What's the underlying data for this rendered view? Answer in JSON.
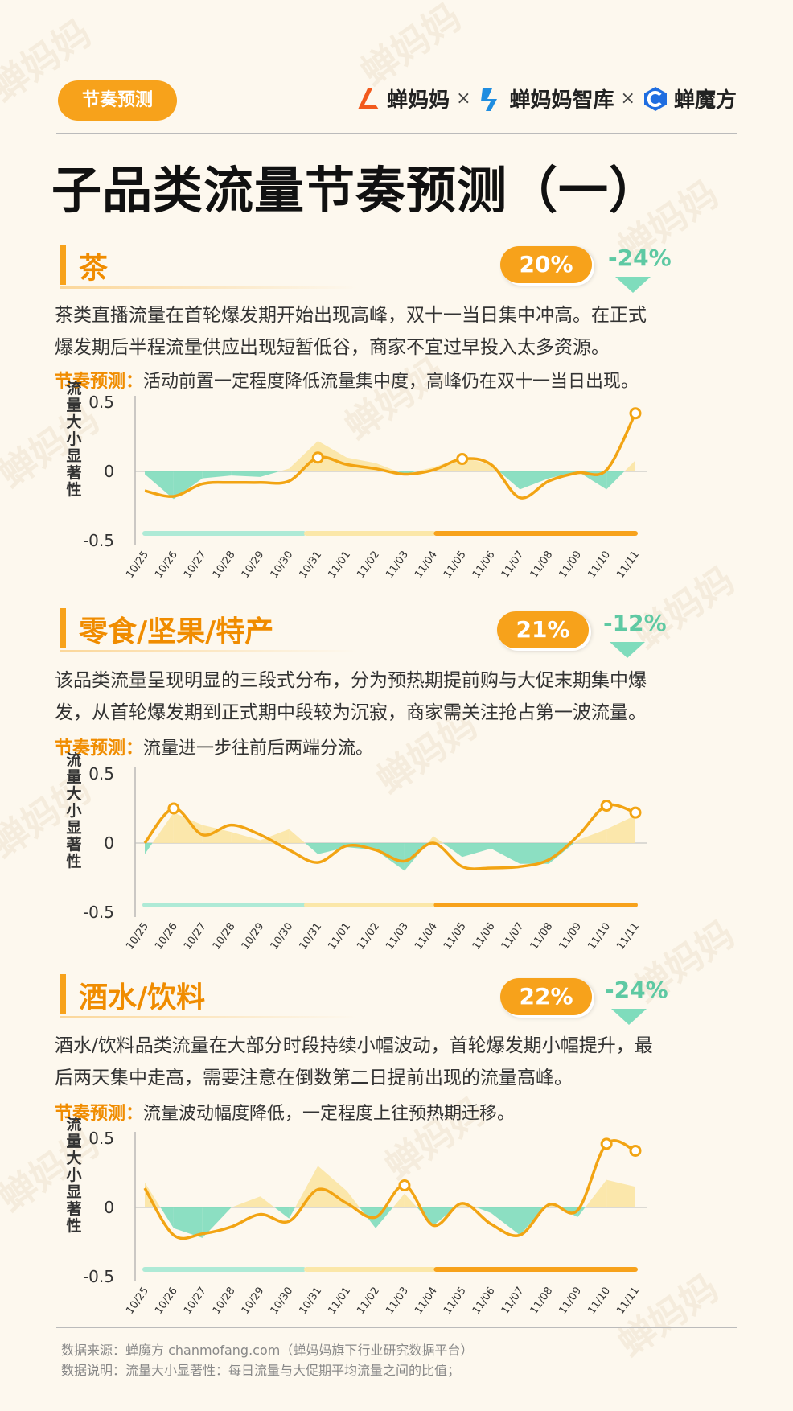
{
  "tag": "节奏预测",
  "brands": [
    {
      "name": "蝉妈妈",
      "icon": "chanmama-logo-icon",
      "color": "#f25a1d"
    },
    {
      "name": "蝉妈妈智库",
      "icon": "chanmama-zhiku-logo-icon",
      "color": "#1f8de0"
    },
    {
      "name": "蝉魔方",
      "icon": "chanmofang-logo-icon",
      "color": "#1f6de0"
    }
  ],
  "times_symbol": "×",
  "title": "子品类流量节奏预测（一）",
  "colors": {
    "accent": "#f7a21b",
    "positive_fill": "#fbe4a3",
    "negative_fill": "#7fdcbc",
    "line": "#f2a413",
    "phase1": "#aeead6",
    "phase2": "#fbe7a8",
    "phase3": "#f7a21b"
  },
  "sections": [
    {
      "title": "茶",
      "share": "20%",
      "change": "-24%",
      "description": [
        "茶类直播流量在首轮爆发期开始出现高峰，双十一当日集中冲高。在正式",
        "爆发期后半程流量供应出现短暂低谷，商家不宜过早投入太多资源。"
      ],
      "forecast_label": "节奏预测：",
      "forecast_text": "活动前置一定程度降低流量集中度，高峰仍在双十一当日出现。"
    },
    {
      "title": "零食/坚果/特产",
      "share": "21%",
      "change": "-12%",
      "description": [
        "该品类流量呈现明显的三段式分布，分为预热期提前购与大促末期集中爆",
        "发，从首轮爆发期到正式期中段较为沉寂，商家需关注抢占第一波流量。"
      ],
      "forecast_label": "节奏预测：",
      "forecast_text": "流量进一步往前后两端分流。"
    },
    {
      "title": "酒水/饮料",
      "share": "22%",
      "change": "-24%",
      "description": [
        "酒水/饮料品类流量在大部分时段持续小幅波动，首轮爆发期小幅提升，最",
        "后两天集中走高，需要注意在倒数第二日提前出现的流量高峰。"
      ],
      "forecast_label": "节奏预测：",
      "forecast_text": "流量波动幅度降低，一定程度上往预热期迁移。"
    }
  ],
  "chart_data": [
    {
      "type": "area",
      "ylabel": "流量大小显著性",
      "ylim": [
        -0.5,
        0.5
      ],
      "yticks": [
        "0.5",
        "0",
        "-0.5"
      ],
      "categories": [
        "10/25",
        "10/26",
        "10/27",
        "10/28",
        "10/29",
        "10/30",
        "10/31",
        "11/01",
        "11/02",
        "11/03",
        "11/04",
        "11/05",
        "11/06",
        "11/07",
        "11/08",
        "11/09",
        "11/10",
        "11/11"
      ],
      "series": [
        {
          "values": [
            -0.02,
            -0.2,
            -0.05,
            -0.03,
            -0.04,
            0.02,
            0.22,
            0.1,
            0.06,
            -0.02,
            0.03,
            0.1,
            0.05,
            -0.13,
            -0.05,
            0.0,
            -0.13,
            0.08
          ]
        },
        {
          "values": [
            -0.14,
            -0.18,
            -0.09,
            -0.08,
            -0.08,
            -0.07,
            0.1,
            0.05,
            0.02,
            -0.02,
            0.01,
            0.09,
            0.05,
            -0.19,
            -0.07,
            -0.01,
            0.01,
            0.42
          ],
          "markers": [
            6,
            11,
            17
          ]
        }
      ]
    },
    {
      "type": "area",
      "ylabel": "流量大小显著性",
      "ylim": [
        -0.5,
        0.5
      ],
      "yticks": [
        "0.5",
        "0",
        "-0.5"
      ],
      "categories": [
        "10/25",
        "10/26",
        "10/27",
        "10/28",
        "10/29",
        "10/30",
        "10/31",
        "11/01",
        "11/02",
        "11/03",
        "11/04",
        "11/05",
        "11/06",
        "11/07",
        "11/08",
        "11/09",
        "11/10",
        "11/11"
      ],
      "series": [
        {
          "values": [
            -0.08,
            0.22,
            0.13,
            0.08,
            0.02,
            0.1,
            -0.08,
            -0.03,
            -0.05,
            -0.2,
            0.05,
            -0.1,
            -0.04,
            -0.15,
            -0.15,
            0.02,
            0.1,
            0.2
          ]
        },
        {
          "values": [
            0.0,
            0.25,
            0.06,
            0.13,
            0.06,
            -0.05,
            -0.14,
            -0.02,
            -0.05,
            -0.13,
            0.0,
            -0.17,
            -0.18,
            -0.17,
            -0.12,
            0.05,
            0.27,
            0.22
          ],
          "markers": [
            1,
            16,
            17
          ]
        }
      ]
    },
    {
      "type": "area",
      "ylabel": "流量大小显著性",
      "ylim": [
        -0.5,
        0.5
      ],
      "yticks": [
        "0.5",
        "0",
        "-0.5"
      ],
      "categories": [
        "10/25",
        "10/26",
        "10/27",
        "10/28",
        "10/29",
        "10/30",
        "10/31",
        "11/01",
        "11/02",
        "11/03",
        "11/04",
        "11/05",
        "11/06",
        "11/07",
        "11/08",
        "11/09",
        "11/10",
        "11/11"
      ],
      "series": [
        {
          "values": [
            0.18,
            -0.15,
            -0.22,
            0.0,
            0.08,
            -0.08,
            0.3,
            0.12,
            -0.15,
            0.1,
            -0.13,
            0.04,
            -0.04,
            -0.2,
            0.04,
            -0.07,
            0.2,
            0.15
          ]
        },
        {
          "values": [
            0.14,
            -0.2,
            -0.19,
            -0.14,
            -0.05,
            -0.1,
            0.13,
            0.03,
            -0.07,
            0.16,
            -0.13,
            0.03,
            -0.12,
            -0.2,
            0.02,
            -0.02,
            0.46,
            0.41
          ],
          "markers": [
            9,
            16,
            17
          ]
        }
      ]
    }
  ],
  "footer": {
    "source": "数据来源：蝉魔方 chanmofang.com（蝉妈妈旗下行业研究数据平台）",
    "note": "数据说明：流量大小显著性：每日流量与大促期平均流量之间的比值；"
  }
}
